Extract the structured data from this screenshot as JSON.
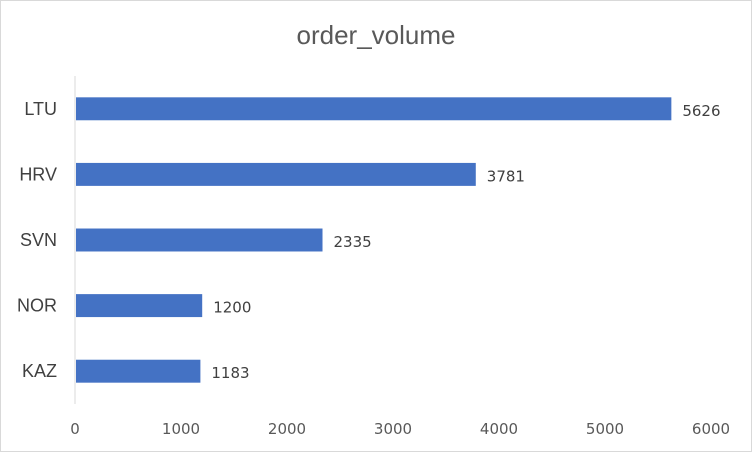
{
  "chart_data": {
    "type": "bar",
    "orientation": "horizontal",
    "title": "order_volume",
    "xlabel": "",
    "ylabel": "",
    "categories": [
      "LTU",
      "HRV",
      "SVN",
      "NOR",
      "KAZ"
    ],
    "values": [
      5626,
      3781,
      2335,
      1200,
      1183
    ],
    "xlim": [
      0,
      6000
    ],
    "xticks": [
      0,
      1000,
      2000,
      3000,
      4000,
      5000,
      6000
    ],
    "grid": false,
    "legend": "none",
    "bar_color": "#4472C4",
    "data_labels": true
  }
}
